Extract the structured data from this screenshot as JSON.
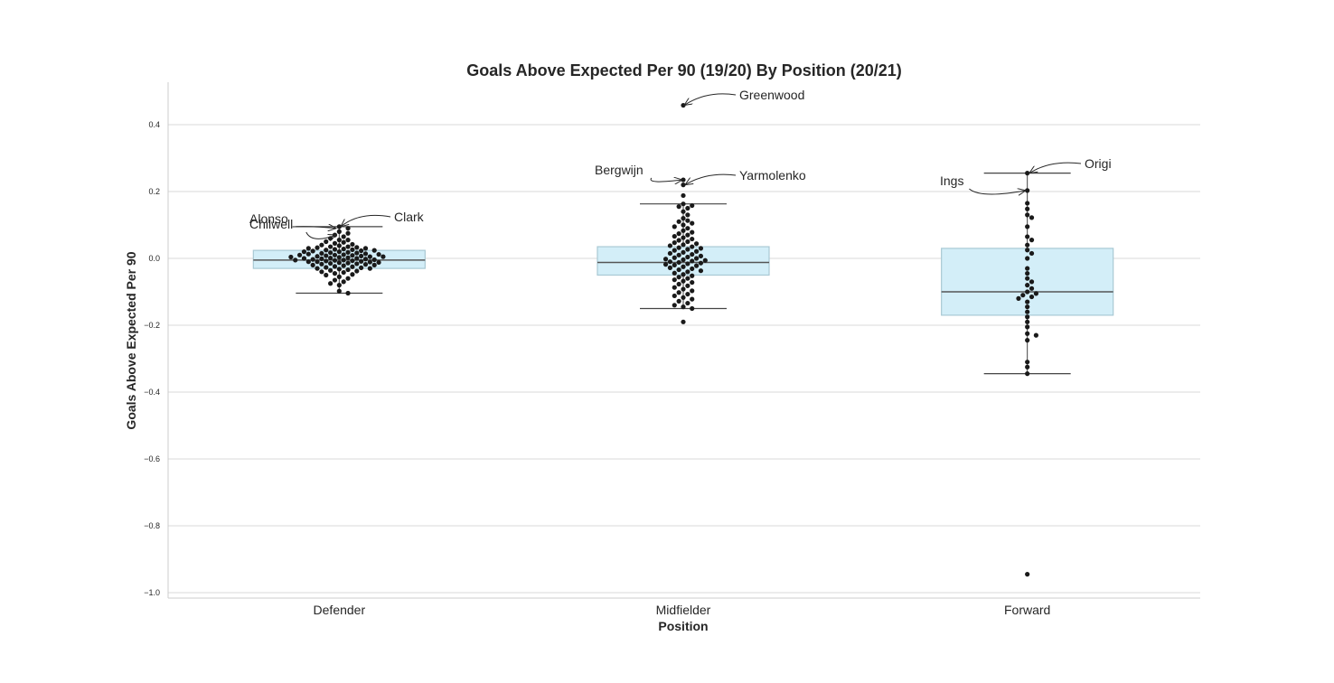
{
  "chart_data": {
    "type": "box-swarm",
    "title": "Goals Above Expected Per 90 (19/20) By Position (20/21)",
    "xlabel": "Position",
    "ylabel": "Goals Above Expected Per 90",
    "ylim": [
      -1.01,
      0.52
    ],
    "yticks": [
      {
        "value": 0.4,
        "label": "0.4"
      },
      {
        "value": 0.2,
        "label": "0.2"
      },
      {
        "value": 0.0,
        "label": "0.0"
      },
      {
        "value": -0.2,
        "label": "−0.2"
      },
      {
        "value": -0.4,
        "label": "−0.4"
      },
      {
        "value": -0.6,
        "label": "−0.6"
      },
      {
        "value": -0.8,
        "label": "−0.8"
      },
      {
        "value": -1.0,
        "label": "−1.0"
      }
    ],
    "grid": true,
    "colors": {
      "box_fill": "#d3eef8",
      "box_edge": "#a9c9d4",
      "median": "#555555",
      "point": "#1a1a1a",
      "grid": "#d9d9d9"
    },
    "categories": [
      "Defender",
      "Midfielder",
      "Forward"
    ],
    "boxes": [
      {
        "category": "Defender",
        "q1": -0.03,
        "median": -0.005,
        "q3": 0.024,
        "whisker_low": -0.104,
        "whisker_high": 0.095
      },
      {
        "category": "Midfielder",
        "q1": -0.05,
        "median": -0.012,
        "q3": 0.035,
        "whisker_low": -0.15,
        "whisker_high": 0.163
      },
      {
        "category": "Forward",
        "q1": -0.17,
        "median": -0.1,
        "q3": 0.03,
        "whisker_low": -0.345,
        "whisker_high": 0.255
      }
    ],
    "points": [
      {
        "category": "Defender",
        "values": [
          0.095,
          0.09,
          0.08,
          0.075,
          0.07,
          0.065,
          0.06,
          0.055,
          0.055,
          0.05,
          0.048,
          0.045,
          0.042,
          0.04,
          0.038,
          0.035,
          0.035,
          0.033,
          0.032,
          0.03,
          0.03,
          0.028,
          0.027,
          0.026,
          0.025,
          0.024,
          0.023,
          0.022,
          0.02,
          0.02,
          0.018,
          0.017,
          0.016,
          0.015,
          0.014,
          0.013,
          0.012,
          0.011,
          0.01,
          0.01,
          0.009,
          0.008,
          0.007,
          0.006,
          0.005,
          0.005,
          0.004,
          0.003,
          0.002,
          0.001,
          0.0,
          0.0,
          -0.001,
          -0.002,
          -0.003,
          -0.004,
          -0.005,
          -0.005,
          -0.006,
          -0.007,
          -0.008,
          -0.009,
          -0.01,
          -0.01,
          -0.011,
          -0.012,
          -0.013,
          -0.014,
          -0.015,
          -0.016,
          -0.017,
          -0.018,
          -0.02,
          -0.02,
          -0.022,
          -0.024,
          -0.025,
          -0.027,
          -0.028,
          -0.03,
          -0.03,
          -0.032,
          -0.034,
          -0.036,
          -0.038,
          -0.04,
          -0.042,
          -0.045,
          -0.048,
          -0.05,
          -0.055,
          -0.06,
          -0.065,
          -0.07,
          -0.075,
          -0.08,
          -0.098,
          -0.104
        ]
      },
      {
        "category": "Midfielder",
        "values": [
          0.458,
          0.235,
          0.22,
          0.188,
          0.163,
          0.158,
          0.155,
          0.15,
          0.14,
          0.13,
          0.12,
          0.113,
          0.11,
          0.105,
          0.1,
          0.095,
          0.09,
          0.083,
          0.078,
          0.074,
          0.07,
          0.066,
          0.062,
          0.058,
          0.054,
          0.05,
          0.047,
          0.044,
          0.041,
          0.038,
          0.035,
          0.032,
          0.03,
          0.027,
          0.024,
          0.021,
          0.018,
          0.015,
          0.012,
          0.01,
          0.007,
          0.004,
          0.002,
          0.0,
          -0.002,
          -0.004,
          -0.006,
          -0.008,
          -0.01,
          -0.012,
          -0.014,
          -0.016,
          -0.018,
          -0.02,
          -0.022,
          -0.025,
          -0.028,
          -0.031,
          -0.034,
          -0.037,
          -0.04,
          -0.044,
          -0.048,
          -0.052,
          -0.056,
          -0.06,
          -0.064,
          -0.068,
          -0.072,
          -0.077,
          -0.082,
          -0.087,
          -0.092,
          -0.097,
          -0.102,
          -0.107,
          -0.112,
          -0.117,
          -0.122,
          -0.128,
          -0.134,
          -0.14,
          -0.145,
          -0.15,
          -0.19
        ]
      },
      {
        "category": "Forward",
        "values": [
          0.255,
          0.203,
          0.165,
          0.148,
          0.13,
          0.122,
          0.095,
          0.065,
          0.055,
          0.04,
          0.025,
          0.015,
          0.0,
          -0.03,
          -0.045,
          -0.06,
          -0.07,
          -0.08,
          -0.09,
          -0.1,
          -0.105,
          -0.11,
          -0.115,
          -0.12,
          -0.13,
          -0.145,
          -0.16,
          -0.175,
          -0.19,
          -0.205,
          -0.225,
          -0.23,
          -0.245,
          -0.31,
          -0.325,
          -0.345,
          -0.945
        ]
      }
    ],
    "annotations": [
      {
        "label": "Alonso",
        "category": "Defender",
        "value": 0.09
      },
      {
        "label": "Chilwell",
        "category": "Defender",
        "value": 0.07
      },
      {
        "label": "Clark",
        "category": "Defender",
        "value": 0.095
      },
      {
        "label": "Greenwood",
        "category": "Midfielder",
        "value": 0.458
      },
      {
        "label": "Bergwijn",
        "category": "Midfielder",
        "value": 0.235
      },
      {
        "label": "Yarmolenko",
        "category": "Midfielder",
        "value": 0.22
      },
      {
        "label": "Origi",
        "category": "Forward",
        "value": 0.255
      },
      {
        "label": "Ings",
        "category": "Forward",
        "value": 0.203
      }
    ]
  }
}
